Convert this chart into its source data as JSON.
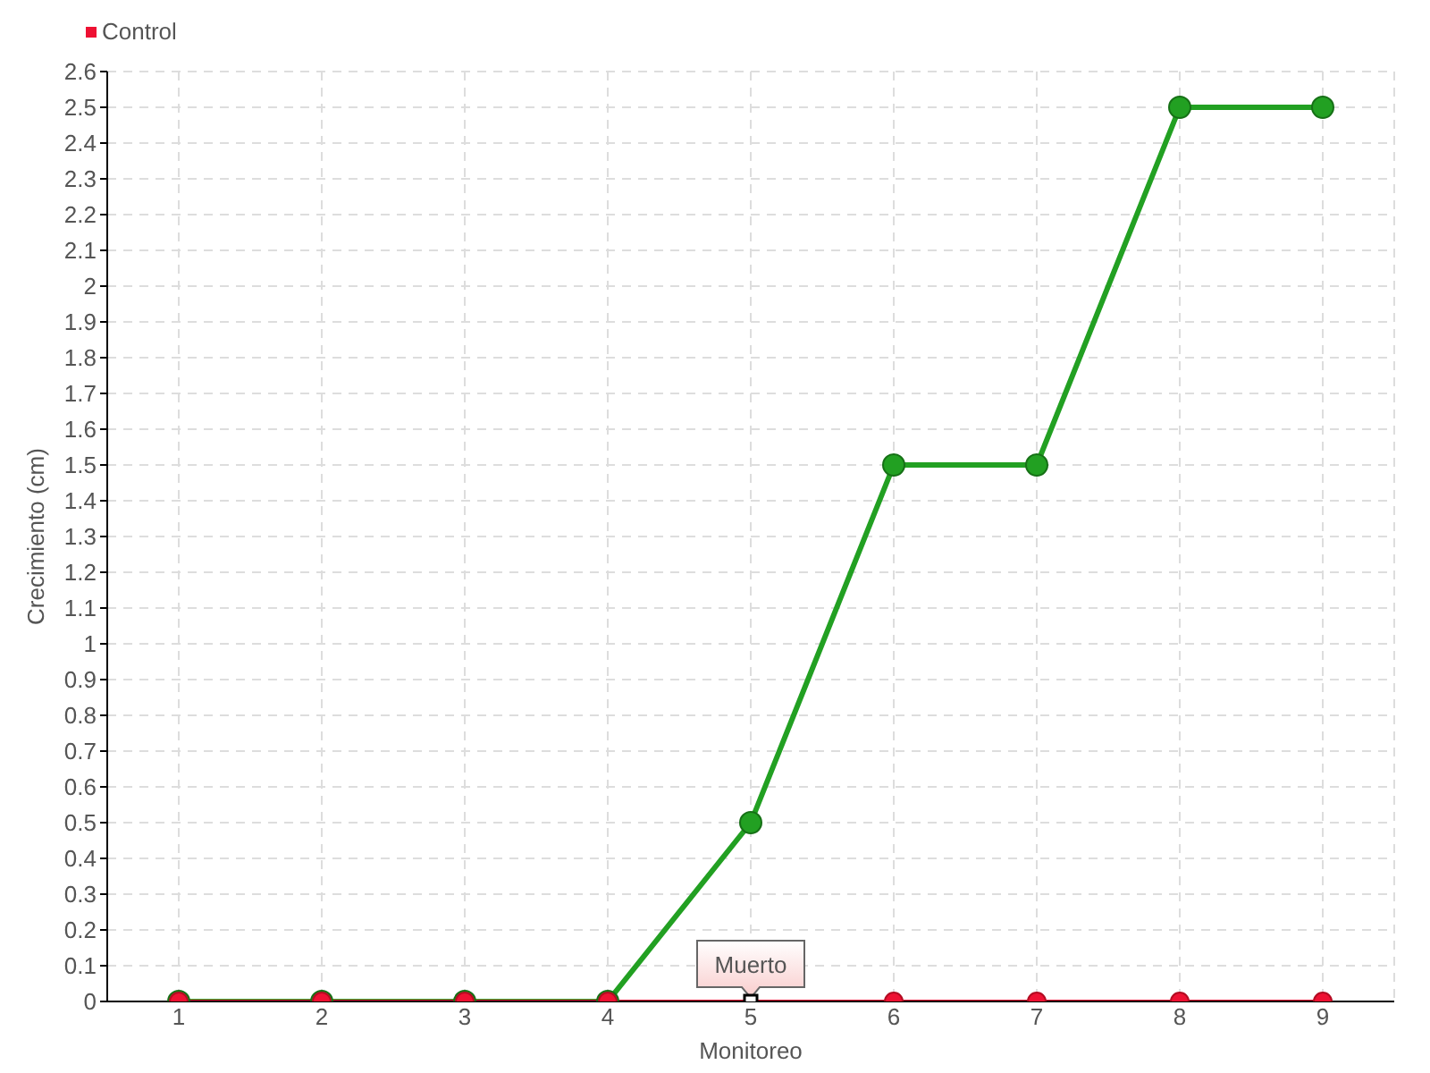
{
  "chart_data": {
    "type": "line",
    "xlabel": "Monitoreo",
    "ylabel": "Crecimiento (cm)",
    "categories": [
      "1",
      "2",
      "3",
      "4",
      "5",
      "6",
      "7",
      "8",
      "9"
    ],
    "series": [
      {
        "color": "#22a022",
        "values": [
          0,
          0,
          0,
          0,
          0.5,
          1.5,
          1.5,
          2.5,
          2.5
        ]
      },
      {
        "name": "Control",
        "color": "#ee1133",
        "values": [
          0,
          0,
          0,
          0,
          0,
          0,
          0,
          0,
          0
        ]
      }
    ],
    "ylim": [
      0,
      2.6
    ],
    "yticks": [
      0,
      0.1,
      0.2,
      0.3,
      0.4,
      0.5,
      0.6,
      0.7,
      0.8,
      0.9,
      1,
      1.1,
      1.2,
      1.3,
      1.4,
      1.5,
      1.6,
      1.7,
      1.8,
      1.9,
      2,
      2.1,
      2.2,
      2.3,
      2.4,
      2.5,
      2.6
    ],
    "grid": true,
    "legend": "top left",
    "marker": "circle",
    "annotations": [
      {
        "text": "Muerto",
        "x": "5",
        "y": 0
      }
    ]
  }
}
